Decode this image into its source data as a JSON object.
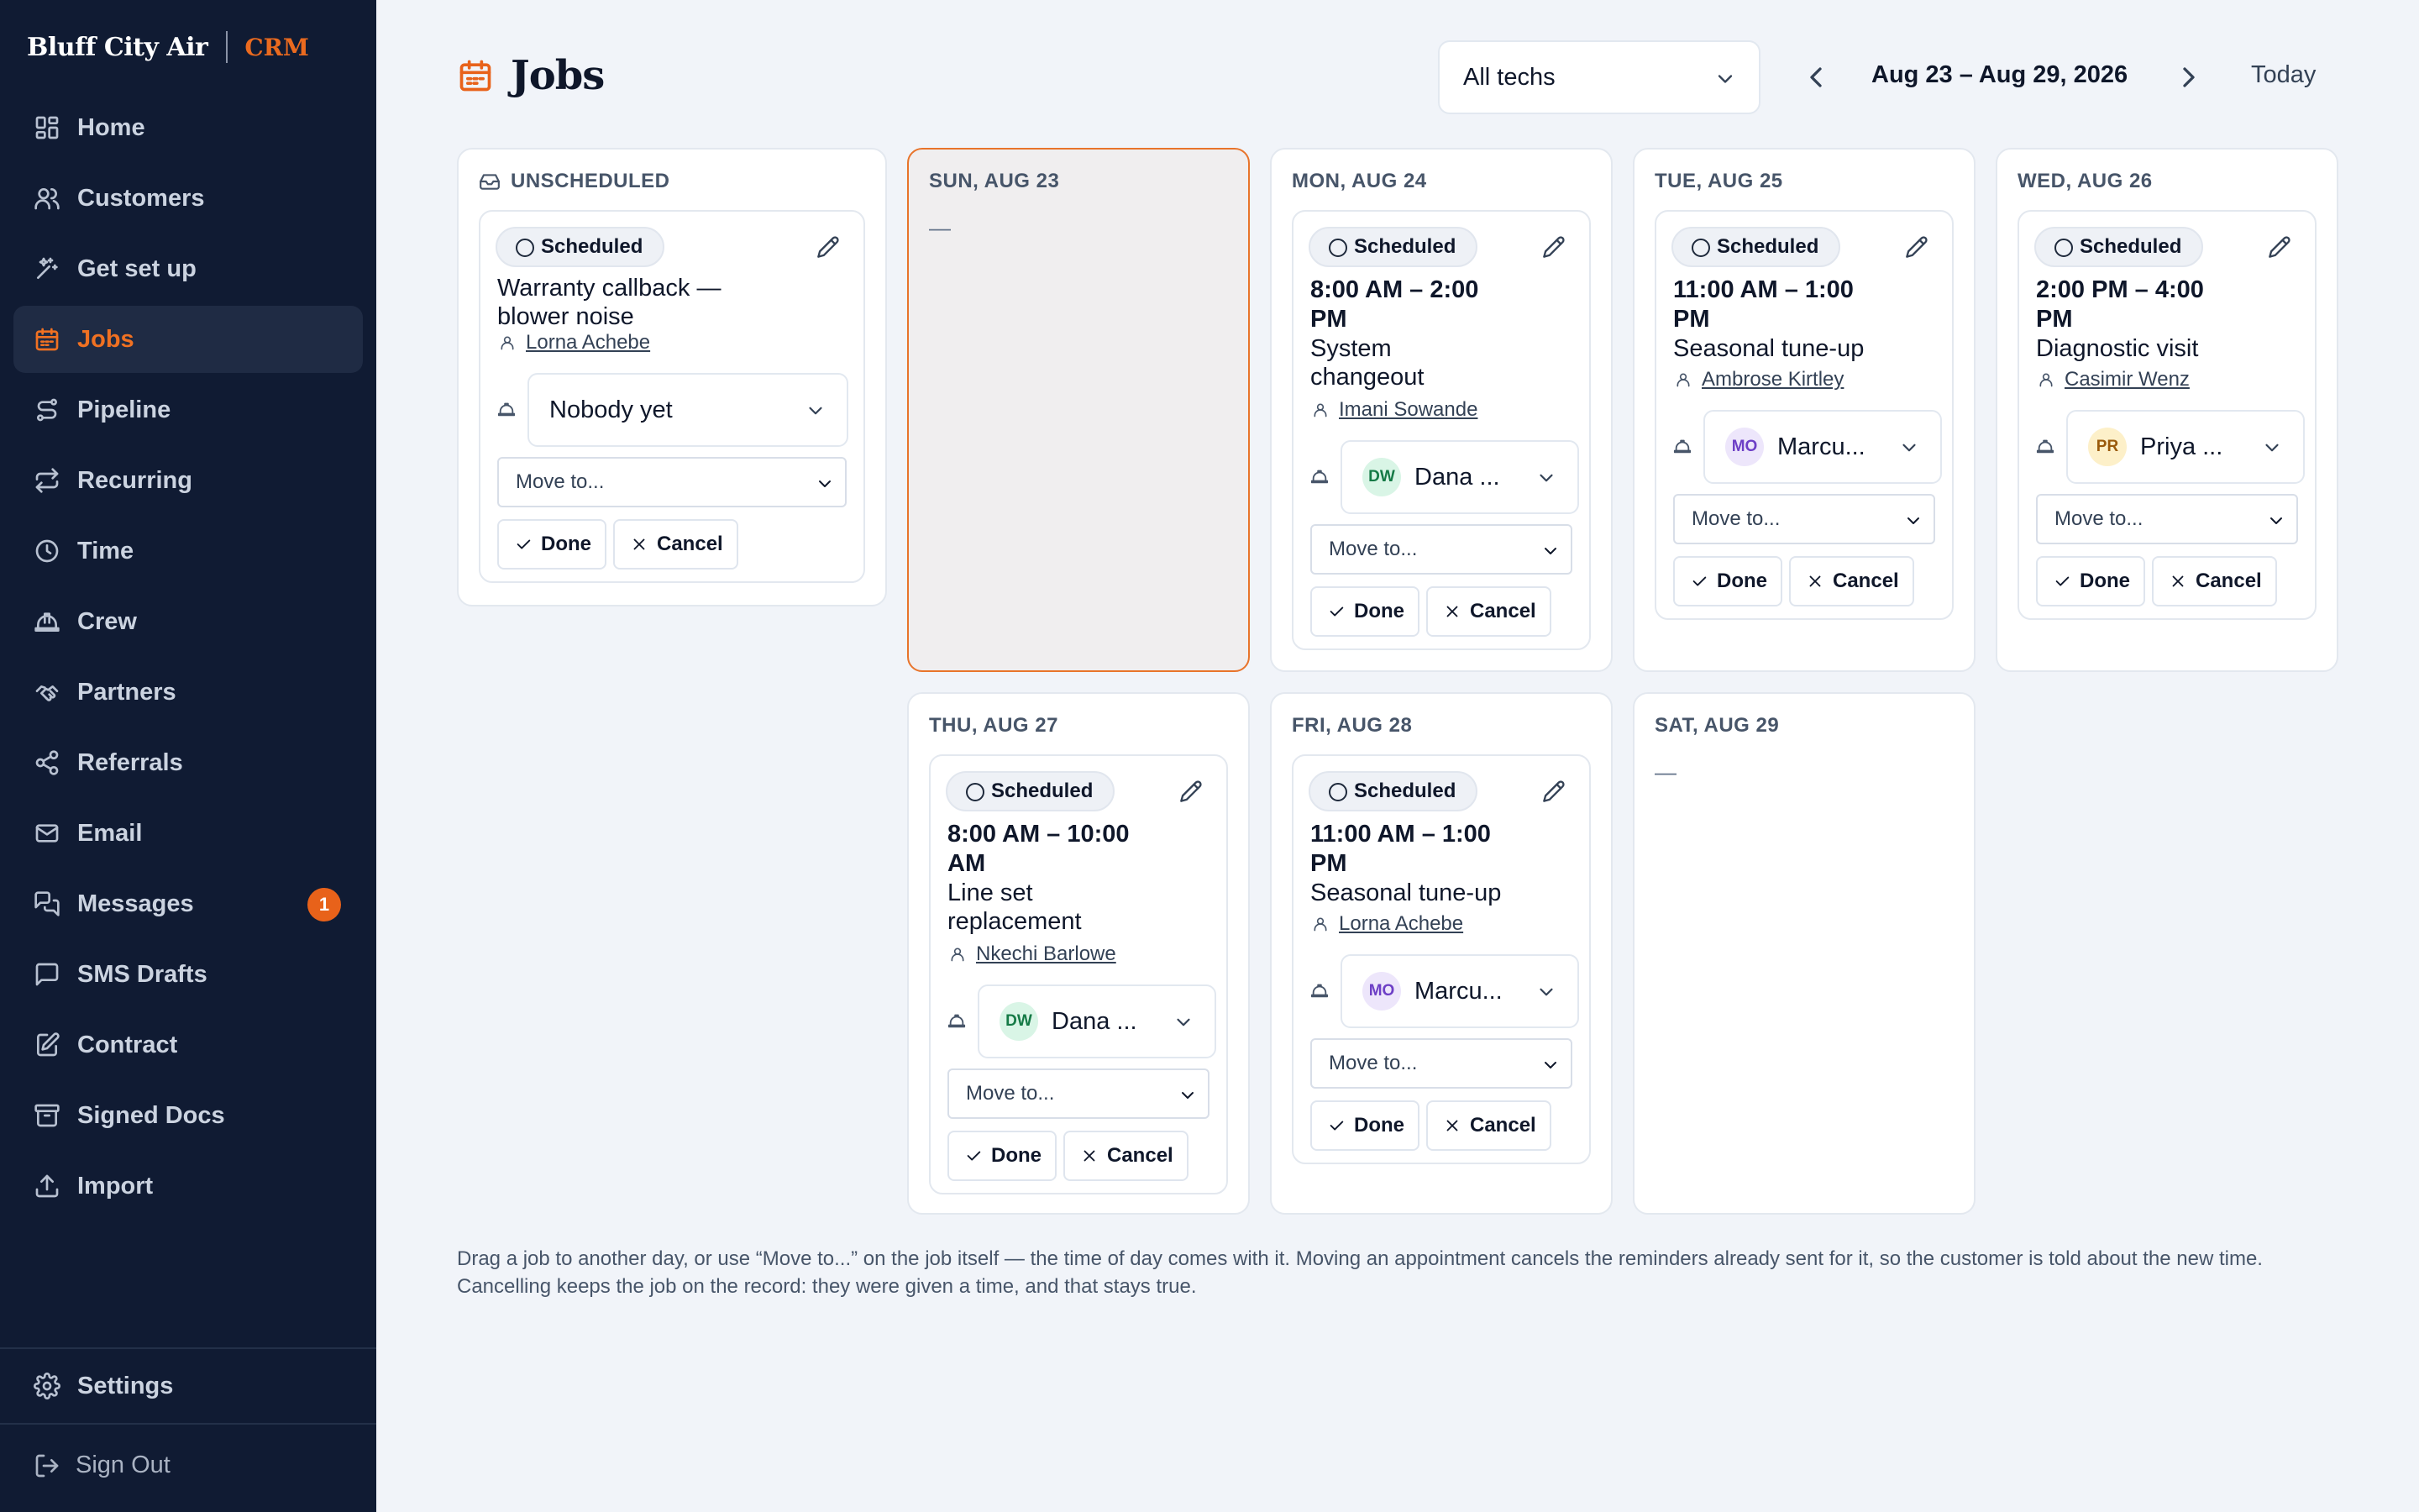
{
  "brand": {
    "name": "Bluff City Air",
    "suffix": "CRM"
  },
  "nav": [
    {
      "label": "Home"
    },
    {
      "label": "Customers"
    },
    {
      "label": "Get set up"
    },
    {
      "label": "Jobs"
    },
    {
      "label": "Pipeline"
    },
    {
      "label": "Recurring"
    },
    {
      "label": "Time"
    },
    {
      "label": "Crew"
    },
    {
      "label": "Partners"
    },
    {
      "label": "Referrals"
    },
    {
      "label": "Email"
    },
    {
      "label": "Messages",
      "badge": "1"
    },
    {
      "label": "SMS Drafts"
    },
    {
      "label": "Contract"
    },
    {
      "label": "Signed Docs"
    },
    {
      "label": "Import"
    }
  ],
  "settings_label": "Settings",
  "signout_label": "Sign Out",
  "header": {
    "title": "Jobs",
    "tech_filter": "All techs",
    "week_range": "Aug 23 – Aug 29, 2026",
    "today_label": "Today"
  },
  "colors": {
    "accent": "#e8621a",
    "sidebar": "#101b33",
    "today_border": "#e8742b"
  },
  "columns": {
    "unscheduled": {
      "heading": "UNSCHEDULED",
      "job": {
        "status": "Scheduled",
        "title": "Warranty callback — blower noise",
        "customer": "Lorna Achebe",
        "crew": "Nobody yet",
        "move": "Move to...",
        "done": "Done",
        "cancel": "Cancel"
      }
    },
    "sun": {
      "heading": "SUN, AUG 23",
      "empty": "—"
    },
    "mon": {
      "heading": "MON, AUG 24",
      "job": {
        "status": "Scheduled",
        "time": "8:00 AM – 2:00 PM",
        "title": "System changeout",
        "customer": "Imani Sowande",
        "crew_initials": "DW",
        "crew": "Dana ...",
        "move": "Move to...",
        "done": "Done",
        "cancel": "Cancel"
      }
    },
    "tue": {
      "heading": "TUE, AUG 25",
      "job": {
        "status": "Scheduled",
        "time": "11:00 AM – 1:00 PM",
        "title": "Seasonal tune-up",
        "customer": "Ambrose Kirtley",
        "crew_initials": "MO",
        "crew": "Marcu...",
        "move": "Move to...",
        "done": "Done",
        "cancel": "Cancel"
      }
    },
    "wed": {
      "heading": "WED, AUG 26",
      "job": {
        "status": "Scheduled",
        "time": "2:00 PM – 4:00 PM",
        "title": "Diagnostic visit",
        "customer": "Casimir Wenz",
        "crew_initials": "PR",
        "crew": "Priya ...",
        "move": "Move to...",
        "done": "Done",
        "cancel": "Cancel"
      }
    },
    "thu": {
      "heading": "THU, AUG 27",
      "job": {
        "status": "Scheduled",
        "time": "8:00 AM – 10:00 AM",
        "title": "Line set replacement",
        "customer": "Nkechi Barlowe",
        "crew_initials": "DW",
        "crew": "Dana ...",
        "move": "Move to...",
        "done": "Done",
        "cancel": "Cancel"
      }
    },
    "fri": {
      "heading": "FRI, AUG 28",
      "job": {
        "status": "Scheduled",
        "time": "11:00 AM – 1:00 PM",
        "title": "Seasonal tune-up",
        "customer": "Lorna Achebe",
        "crew_initials": "MO",
        "crew": "Marcu...",
        "move": "Move to...",
        "done": "Done",
        "cancel": "Cancel"
      }
    },
    "sat": {
      "heading": "SAT, AUG 29",
      "empty": "—"
    }
  },
  "helper_text": "Drag a job to another day, or use “Move to...” on the job itself — the time of day comes with it. Moving an appointment cancels the reminders already sent for it, so the customer is told about the new time. Cancelling keeps the job on the record: they were given a time, and that stays true."
}
